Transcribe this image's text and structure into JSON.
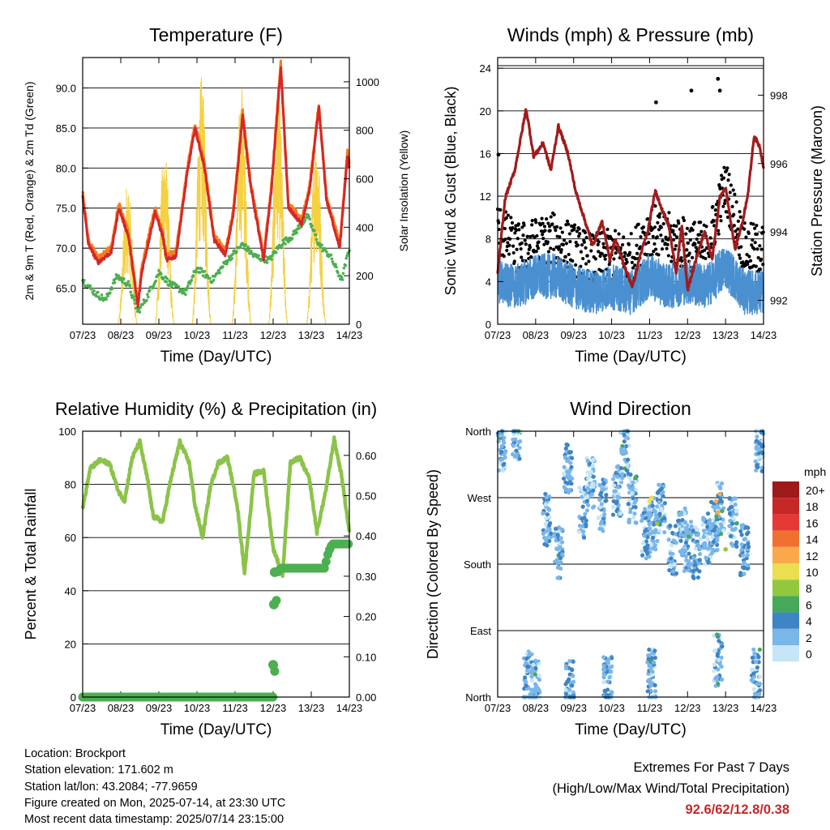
{
  "chart_data": [
    {
      "type": "line",
      "title": "Temperature (F)",
      "xlabel": "Time (Day/UTC)",
      "ylabel": "2m & 9m T (Red, Orange) & 2m Td (Green)",
      "ylabel_right": "Solar Insolation (Yellow)",
      "x_ticks": [
        "07/23",
        "08/23",
        "09/23",
        "10/23",
        "11/23",
        "12/23",
        "13/23",
        "14/23"
      ],
      "y_ticks": [
        "65.0",
        "70.0",
        "75.0",
        "80.0",
        "85.0",
        "90.0"
      ],
      "y_right_ticks": [
        "0",
        "200",
        "400",
        "600",
        "800",
        "1000"
      ],
      "ylim": [
        60.5,
        93.8
      ],
      "ylim_right": [
        0,
        1100
      ],
      "xlim_days": [
        0,
        7
      ],
      "grid": true,
      "colors": {
        "t2m": "#d62728",
        "t9m": "#f47d20",
        "td": "#4caf50",
        "solar": "#f5d041"
      },
      "series": [
        {
          "key": "t2m",
          "days": [
            0,
            0.15,
            0.4,
            0.75,
            0.95,
            1.2,
            1.45,
            1.55,
            1.7,
            1.9,
            2.1,
            2.2,
            2.45,
            2.75,
            2.95,
            3.2,
            3.45,
            3.75,
            3.95,
            4.2,
            4.4,
            4.75,
            4.95,
            5.2,
            5.4,
            5.75,
            5.95,
            6.2,
            6.4,
            6.75,
            6.95,
            7
          ],
          "values": [
            76.5,
            70.5,
            68.2,
            69.5,
            75,
            71.5,
            62.6,
            67,
            70.2,
            74.5,
            71.5,
            68.5,
            69,
            79.5,
            85,
            80,
            71,
            69.2,
            74,
            86.5,
            78,
            68.5,
            77,
            92.6,
            75,
            73,
            77,
            87.5,
            76,
            70,
            81.5,
            80
          ]
        },
        {
          "key": "td",
          "days": [
            0,
            0.3,
            0.6,
            0.9,
            1.2,
            1.45,
            1.7,
            2.0,
            2.3,
            2.7,
            3.0,
            3.4,
            3.8,
            4.2,
            4.5,
            4.9,
            5.2,
            5.5,
            5.9,
            6.2,
            6.5,
            6.8,
            7
          ],
          "values": [
            66,
            64.5,
            63.5,
            66.5,
            65.5,
            62,
            64,
            67,
            65.5,
            64.5,
            67.5,
            66,
            68.5,
            70.5,
            69,
            68.5,
            70.5,
            71.5,
            74,
            70.5,
            69,
            66,
            70
          ]
        },
        {
          "key": "solar",
          "description": "daily insolation peaks",
          "peak_days": [
            1.18,
            2.15,
            3.12,
            4.17,
            5.13,
            6.13
          ],
          "peak_values": [
            600,
            750,
            1030,
            1000,
            1000,
            820
          ]
        }
      ]
    },
    {
      "type": "line",
      "title": "Winds (mph) & Pressure (mb)",
      "xlabel": "Time (Day/UTC)",
      "ylabel": "Sonic Wind & Gust (Blue, Black)",
      "ylabel_right": "Station Pressure (Maroon)",
      "x_ticks": [
        "07/23",
        "08/23",
        "09/23",
        "10/23",
        "11/23",
        "12/23",
        "13/23",
        "14/23"
      ],
      "y_ticks": [
        "0",
        "4",
        "8",
        "12",
        "16",
        "20",
        "24"
      ],
      "y_right_ticks": [
        "992",
        "994",
        "996",
        "998"
      ],
      "ylim": [
        0,
        25
      ],
      "ylim_right": [
        991.3,
        999.1
      ],
      "xlim_days": [
        0,
        7
      ],
      "grid": true,
      "colors": {
        "wind": "#4a90d0",
        "gust": "#000000",
        "pressure": "#a01c1c"
      },
      "series": [
        {
          "key": "wind",
          "days": [
            0,
            0.5,
            1.0,
            1.5,
            2.0,
            2.5,
            3.0,
            3.5,
            4.0,
            4.5,
            5.0,
            5.5,
            6.0,
            6.5,
            7
          ],
          "values": [
            4,
            3.5,
            4.5,
            4.5,
            3.5,
            3,
            3.5,
            3,
            4.5,
            3.5,
            4,
            3.5,
            5.5,
            3,
            3
          ]
        },
        {
          "key": "gust",
          "days": [
            0,
            0.5,
            1.0,
            1.5,
            2.0,
            2.5,
            3.0,
            3.5,
            4.0,
            4.5,
            5.0,
            5.5,
            6.0,
            6.5,
            7
          ],
          "values": [
            9,
            7,
            7.5,
            8,
            7,
            6,
            6.5,
            6,
            9,
            8,
            7.5,
            7,
            13,
            7,
            7
          ],
          "max_points": [
            {
              "day": 4.17,
              "value": 20.8
            },
            {
              "day": 5.1,
              "value": 21.9
            },
            {
              "day": 5.8,
              "value": 23
            },
            {
              "day": 5.85,
              "value": 21.9
            },
            {
              "day": 0.02,
              "value": 15.9
            }
          ]
        },
        {
          "key": "pressure",
          "days": [
            0,
            0.2,
            0.45,
            0.75,
            0.95,
            1.2,
            1.4,
            1.6,
            1.85,
            2.05,
            2.25,
            2.5,
            2.75,
            2.95,
            3.1,
            3.3,
            3.55,
            3.75,
            3.95,
            4.15,
            4.35,
            4.5,
            4.7,
            4.85,
            5.0,
            5.25,
            5.45,
            5.65,
            5.85,
            6.0,
            6.25,
            6.45,
            6.6,
            6.75,
            6.9,
            7
          ],
          "values": [
            992.8,
            995,
            995.8,
            997.6,
            996.2,
            996.6,
            995.8,
            997.1,
            996.3,
            995.2,
            994.5,
            993.6,
            994.3,
            993.2,
            993.8,
            993.1,
            992.4,
            993.3,
            994,
            995.2,
            994.6,
            994.2,
            992.8,
            994.2,
            992.3,
            993.3,
            994,
            993.2,
            995,
            995.3,
            993.5,
            994.3,
            995.2,
            996.8,
            996.5,
            995.9
          ]
        }
      ]
    },
    {
      "type": "line",
      "title": "Relative Humidity (%) & Precipitation (in)",
      "xlabel": "Time (Day/UTC)",
      "ylabel": "Percent & Total Rainfall",
      "x_ticks": [
        "07/23",
        "08/23",
        "09/23",
        "10/23",
        "11/23",
        "12/23",
        "13/23",
        "14/23"
      ],
      "y_ticks": [
        "0",
        "20",
        "40",
        "60",
        "80",
        "100"
      ],
      "y_right_ticks": [
        "0.00",
        "0.10",
        "0.20",
        "0.30",
        "0.40",
        "0.50",
        "0.60"
      ],
      "ylim": [
        0,
        100
      ],
      "ylim_right": [
        0,
        0.66
      ],
      "xlim_days": [
        0,
        7
      ],
      "grid": true,
      "colors": {
        "rh": "#8bc34a",
        "precip": "#4caf50"
      },
      "series": [
        {
          "key": "rh",
          "days": [
            0,
            0.2,
            0.45,
            0.7,
            0.95,
            1.1,
            1.3,
            1.5,
            1.7,
            1.85,
            2.1,
            2.3,
            2.55,
            2.8,
            2.95,
            3.15,
            3.35,
            3.55,
            3.8,
            4.05,
            4.25,
            4.5,
            4.75,
            5.0,
            5.25,
            5.45,
            5.7,
            5.95,
            6.15,
            6.4,
            6.6,
            6.8,
            7
          ],
          "values": [
            71,
            86,
            89,
            88,
            77,
            74,
            90,
            96,
            82,
            68,
            66,
            81,
            96,
            88,
            72,
            60,
            79,
            88,
            90,
            73,
            47,
            84,
            85,
            56,
            46,
            88,
            90,
            82,
            62,
            79,
            97,
            83,
            62
          ]
        },
        {
          "key": "precip",
          "days": [
            0,
            5.0,
            5.05,
            5.08,
            5.12,
            5.2,
            6.35,
            6.45,
            6.55,
            7
          ],
          "values": [
            0,
            0,
            0.08,
            0.23,
            0.31,
            0.32,
            0.32,
            0.36,
            0.38,
            0.38
          ]
        }
      ]
    },
    {
      "type": "scatter",
      "title": "Wind Direction",
      "xlabel": "Time (Day/UTC)",
      "ylabel": "Direction (Colored By Speed)",
      "x_ticks": [
        "07/23",
        "08/23",
        "09/23",
        "10/23",
        "11/23",
        "12/23",
        "13/23",
        "14/23"
      ],
      "y_ticks": [
        "North",
        "East",
        "South",
        "West",
        "North"
      ],
      "ylim": [
        0,
        360
      ],
      "xlim_days": [
        0,
        7
      ],
      "grid": true,
      "legend": {
        "title": "mph",
        "placement": "right",
        "labels": [
          "20+",
          "18",
          "16",
          "14",
          "12",
          "10",
          "8",
          "6",
          "4",
          "2",
          "0"
        ],
        "colors": [
          "#9e1a1a",
          "#c62828",
          "#e53935",
          "#f07030",
          "#f9a94b",
          "#e9df50",
          "#93c83e",
          "#46a85a",
          "#3f84c4",
          "#7ab6e8",
          "#c6e6f8"
        ]
      },
      "direction_centers": [
        {
          "day": 0.1,
          "deg": 340
        },
        {
          "day": 0.5,
          "deg": 355
        },
        {
          "day": 0.8,
          "deg": 30
        },
        {
          "day": 1.0,
          "deg": 15
        },
        {
          "day": 1.3,
          "deg": 240
        },
        {
          "day": 1.6,
          "deg": 195
        },
        {
          "day": 1.85,
          "deg": 310
        },
        {
          "day": 1.9,
          "deg": 15
        },
        {
          "day": 2.25,
          "deg": 250
        },
        {
          "day": 2.45,
          "deg": 290
        },
        {
          "day": 2.75,
          "deg": 260
        },
        {
          "day": 2.9,
          "deg": 20
        },
        {
          "day": 3.15,
          "deg": 280
        },
        {
          "day": 3.35,
          "deg": 330
        },
        {
          "day": 3.55,
          "deg": 270
        },
        {
          "day": 3.9,
          "deg": 220
        },
        {
          "day": 4.1,
          "deg": 235
        },
        {
          "day": 4.3,
          "deg": 255
        },
        {
          "day": 4.05,
          "deg": 30
        },
        {
          "day": 4.6,
          "deg": 200
        },
        {
          "day": 4.85,
          "deg": 225
        },
        {
          "day": 5.0,
          "deg": 205
        },
        {
          "day": 5.25,
          "deg": 195
        },
        {
          "day": 5.5,
          "deg": 215
        },
        {
          "day": 5.7,
          "deg": 230
        },
        {
          "day": 5.85,
          "deg": 255
        },
        {
          "day": 5.8,
          "deg": 50
        },
        {
          "day": 6.2,
          "deg": 235
        },
        {
          "day": 6.5,
          "deg": 200
        },
        {
          "day": 6.8,
          "deg": 30
        },
        {
          "day": 6.9,
          "deg": 340
        }
      ]
    }
  ],
  "info": {
    "location": "Location: Brockport",
    "elevation": "Station elevation: 171.602 m",
    "latlon": "Station lat/lon: 43.2084; -77.9659",
    "created": "Figure created on Mon, 2025-07-14, at 23:30 UTC",
    "latest": "Most recent data timestamp: 2025/07/14 23:15:00"
  },
  "extremes": {
    "title": "Extremes For Past 7 Days",
    "subtitle": "(High/Low/Max Wind/Total Precipitation)",
    "values": "92.6/62/12.8/0.38"
  }
}
